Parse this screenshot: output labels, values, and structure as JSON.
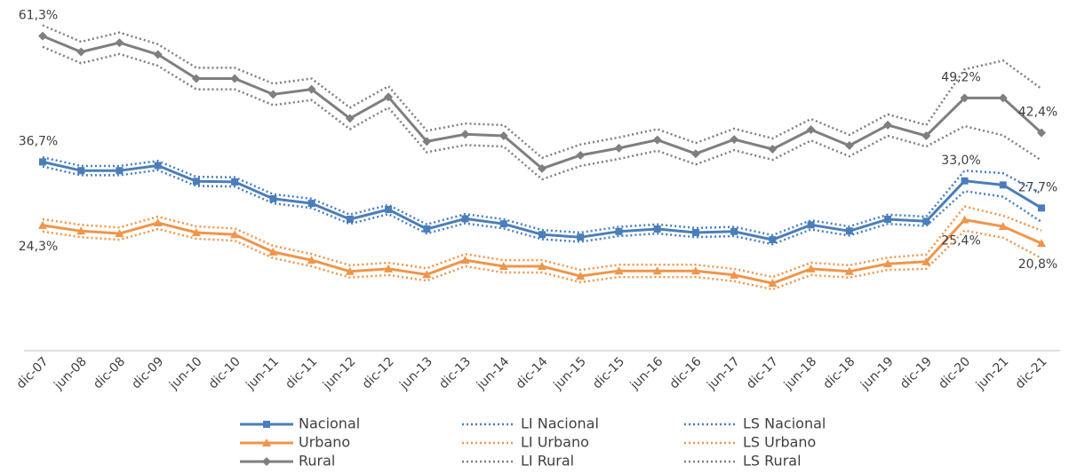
{
  "chart_data": {
    "type": "line",
    "categories": [
      "dic-07",
      "jun-08",
      "dic-08",
      "dic-09",
      "jun-10",
      "dic-10",
      "jun-11",
      "dic-11",
      "jun-12",
      "dic-12",
      "jun-13",
      "dic-13",
      "jun-14",
      "dic-14",
      "jun-15",
      "dic-15",
      "jun-16",
      "dic-16",
      "jun-17",
      "dic-17",
      "jun-18",
      "dic-18",
      "jun-19",
      "dic-19",
      "dic-20",
      "jun-21",
      "dic-21"
    ],
    "ylim": [
      0,
      68
    ],
    "series": [
      {
        "name": "Nacional",
        "color": "#4a7ebb",
        "line_style": "solid",
        "marker": "square",
        "label_position": "above",
        "values": [
          36.7,
          35.0,
          35.0,
          36.0,
          32.9,
          32.8,
          29.5,
          28.6,
          25.5,
          27.4,
          23.6,
          25.6,
          24.6,
          22.5,
          22.0,
          23.1,
          23.6,
          22.9,
          23.1,
          21.5,
          24.4,
          23.2,
          25.5,
          25.1,
          33.0,
          32.2,
          27.7
        ],
        "value_labels": [
          "36,7%",
          null,
          null,
          null,
          null,
          null,
          null,
          null,
          null,
          null,
          null,
          null,
          null,
          null,
          null,
          null,
          null,
          null,
          null,
          null,
          null,
          null,
          null,
          null,
          "33,0%",
          null,
          "27,7%"
        ]
      },
      {
        "name": "LI Nacional",
        "color": "#4a7ebb",
        "line_style": "dotted",
        "values": [
          35.8,
          34.1,
          34.1,
          35.1,
          32.0,
          31.9,
          28.6,
          27.7,
          24.6,
          26.5,
          22.7,
          24.7,
          23.7,
          21.6,
          21.1,
          22.2,
          22.7,
          22.0,
          22.2,
          20.6,
          23.5,
          22.3,
          24.6,
          24.2,
          31.0,
          29.9,
          25.0
        ]
      },
      {
        "name": "LS Nacional",
        "color": "#4a7ebb",
        "line_style": "dotted",
        "values": [
          37.6,
          35.9,
          35.9,
          36.9,
          33.8,
          33.7,
          30.4,
          29.5,
          26.4,
          28.3,
          24.5,
          26.5,
          25.5,
          23.4,
          22.9,
          24.0,
          24.5,
          23.8,
          24.0,
          22.4,
          25.3,
          24.1,
          26.4,
          26.0,
          35.0,
          34.5,
          30.5
        ]
      },
      {
        "name": "Urbano",
        "color": "#f0954a",
        "line_style": "solid",
        "marker": "triangle",
        "label_position": "below",
        "values": [
          24.3,
          23.2,
          22.7,
          24.8,
          22.9,
          22.5,
          19.1,
          17.5,
          15.3,
          15.8,
          14.7,
          17.5,
          16.3,
          16.3,
          14.4,
          15.4,
          15.4,
          15.4,
          14.6,
          13.0,
          15.8,
          15.3,
          16.8,
          17.2,
          25.4,
          24.1,
          20.8
        ],
        "value_labels": [
          "24,3%",
          null,
          null,
          null,
          null,
          null,
          null,
          null,
          null,
          null,
          null,
          null,
          null,
          null,
          null,
          null,
          null,
          null,
          null,
          null,
          null,
          null,
          null,
          null,
          "25,4%",
          null,
          "20,8%"
        ]
      },
      {
        "name": "LI Urbano",
        "color": "#f0954a",
        "line_style": "dotted",
        "values": [
          23.1,
          22.0,
          21.5,
          23.6,
          21.7,
          21.3,
          17.9,
          16.3,
          14.1,
          14.6,
          13.5,
          16.3,
          15.1,
          15.1,
          13.2,
          14.2,
          14.2,
          14.2,
          13.4,
          11.8,
          14.6,
          14.1,
          15.6,
          15.8,
          23.3,
          21.9,
          17.9
        ]
      },
      {
        "name": "LS Urbano",
        "color": "#f0954a",
        "line_style": "dotted",
        "values": [
          25.5,
          24.4,
          23.9,
          26.0,
          24.1,
          23.7,
          20.3,
          18.7,
          16.5,
          17.0,
          15.9,
          18.7,
          17.5,
          17.5,
          15.6,
          16.6,
          16.6,
          16.6,
          15.8,
          14.2,
          17.0,
          16.5,
          18.0,
          18.6,
          28.0,
          26.2,
          23.3
        ]
      },
      {
        "name": "Rural",
        "color": "#7f7f7f",
        "line_style": "solid",
        "marker": "diamond",
        "label_position": "above",
        "values": [
          61.3,
          58.2,
          60.0,
          57.7,
          53.0,
          53.0,
          49.9,
          50.9,
          45.2,
          49.4,
          40.7,
          42.1,
          41.8,
          35.4,
          38.0,
          39.4,
          41.0,
          38.3,
          41.1,
          39.2,
          43.0,
          39.9,
          43.9,
          41.8,
          49.2,
          49.2,
          42.4
        ],
        "value_labels": [
          "61,3%",
          null,
          null,
          null,
          null,
          null,
          null,
          null,
          null,
          null,
          null,
          null,
          null,
          null,
          null,
          null,
          null,
          null,
          null,
          null,
          null,
          null,
          null,
          null,
          "49,2%",
          null,
          "42,4%"
        ]
      },
      {
        "name": "LI Rural",
        "color": "#7f7f7f",
        "line_style": "dotted",
        "values": [
          59.2,
          56.0,
          57.8,
          55.5,
          50.9,
          50.9,
          47.8,
          48.8,
          43.1,
          47.3,
          38.6,
          40.0,
          39.7,
          33.3,
          35.9,
          37.3,
          38.9,
          36.2,
          39.0,
          37.1,
          40.9,
          37.8,
          41.8,
          39.7,
          43.7,
          41.9,
          37.0
        ]
      },
      {
        "name": "LS Rural",
        "color": "#7f7f7f",
        "line_style": "dotted",
        "values": [
          63.4,
          60.2,
          62.0,
          59.7,
          55.1,
          55.1,
          52.0,
          53.0,
          47.3,
          51.5,
          42.8,
          44.2,
          43.9,
          37.5,
          40.1,
          41.5,
          43.1,
          40.4,
          43.2,
          41.3,
          45.1,
          42.0,
          46.0,
          43.9,
          54.8,
          56.5,
          51.0
        ]
      }
    ]
  }
}
